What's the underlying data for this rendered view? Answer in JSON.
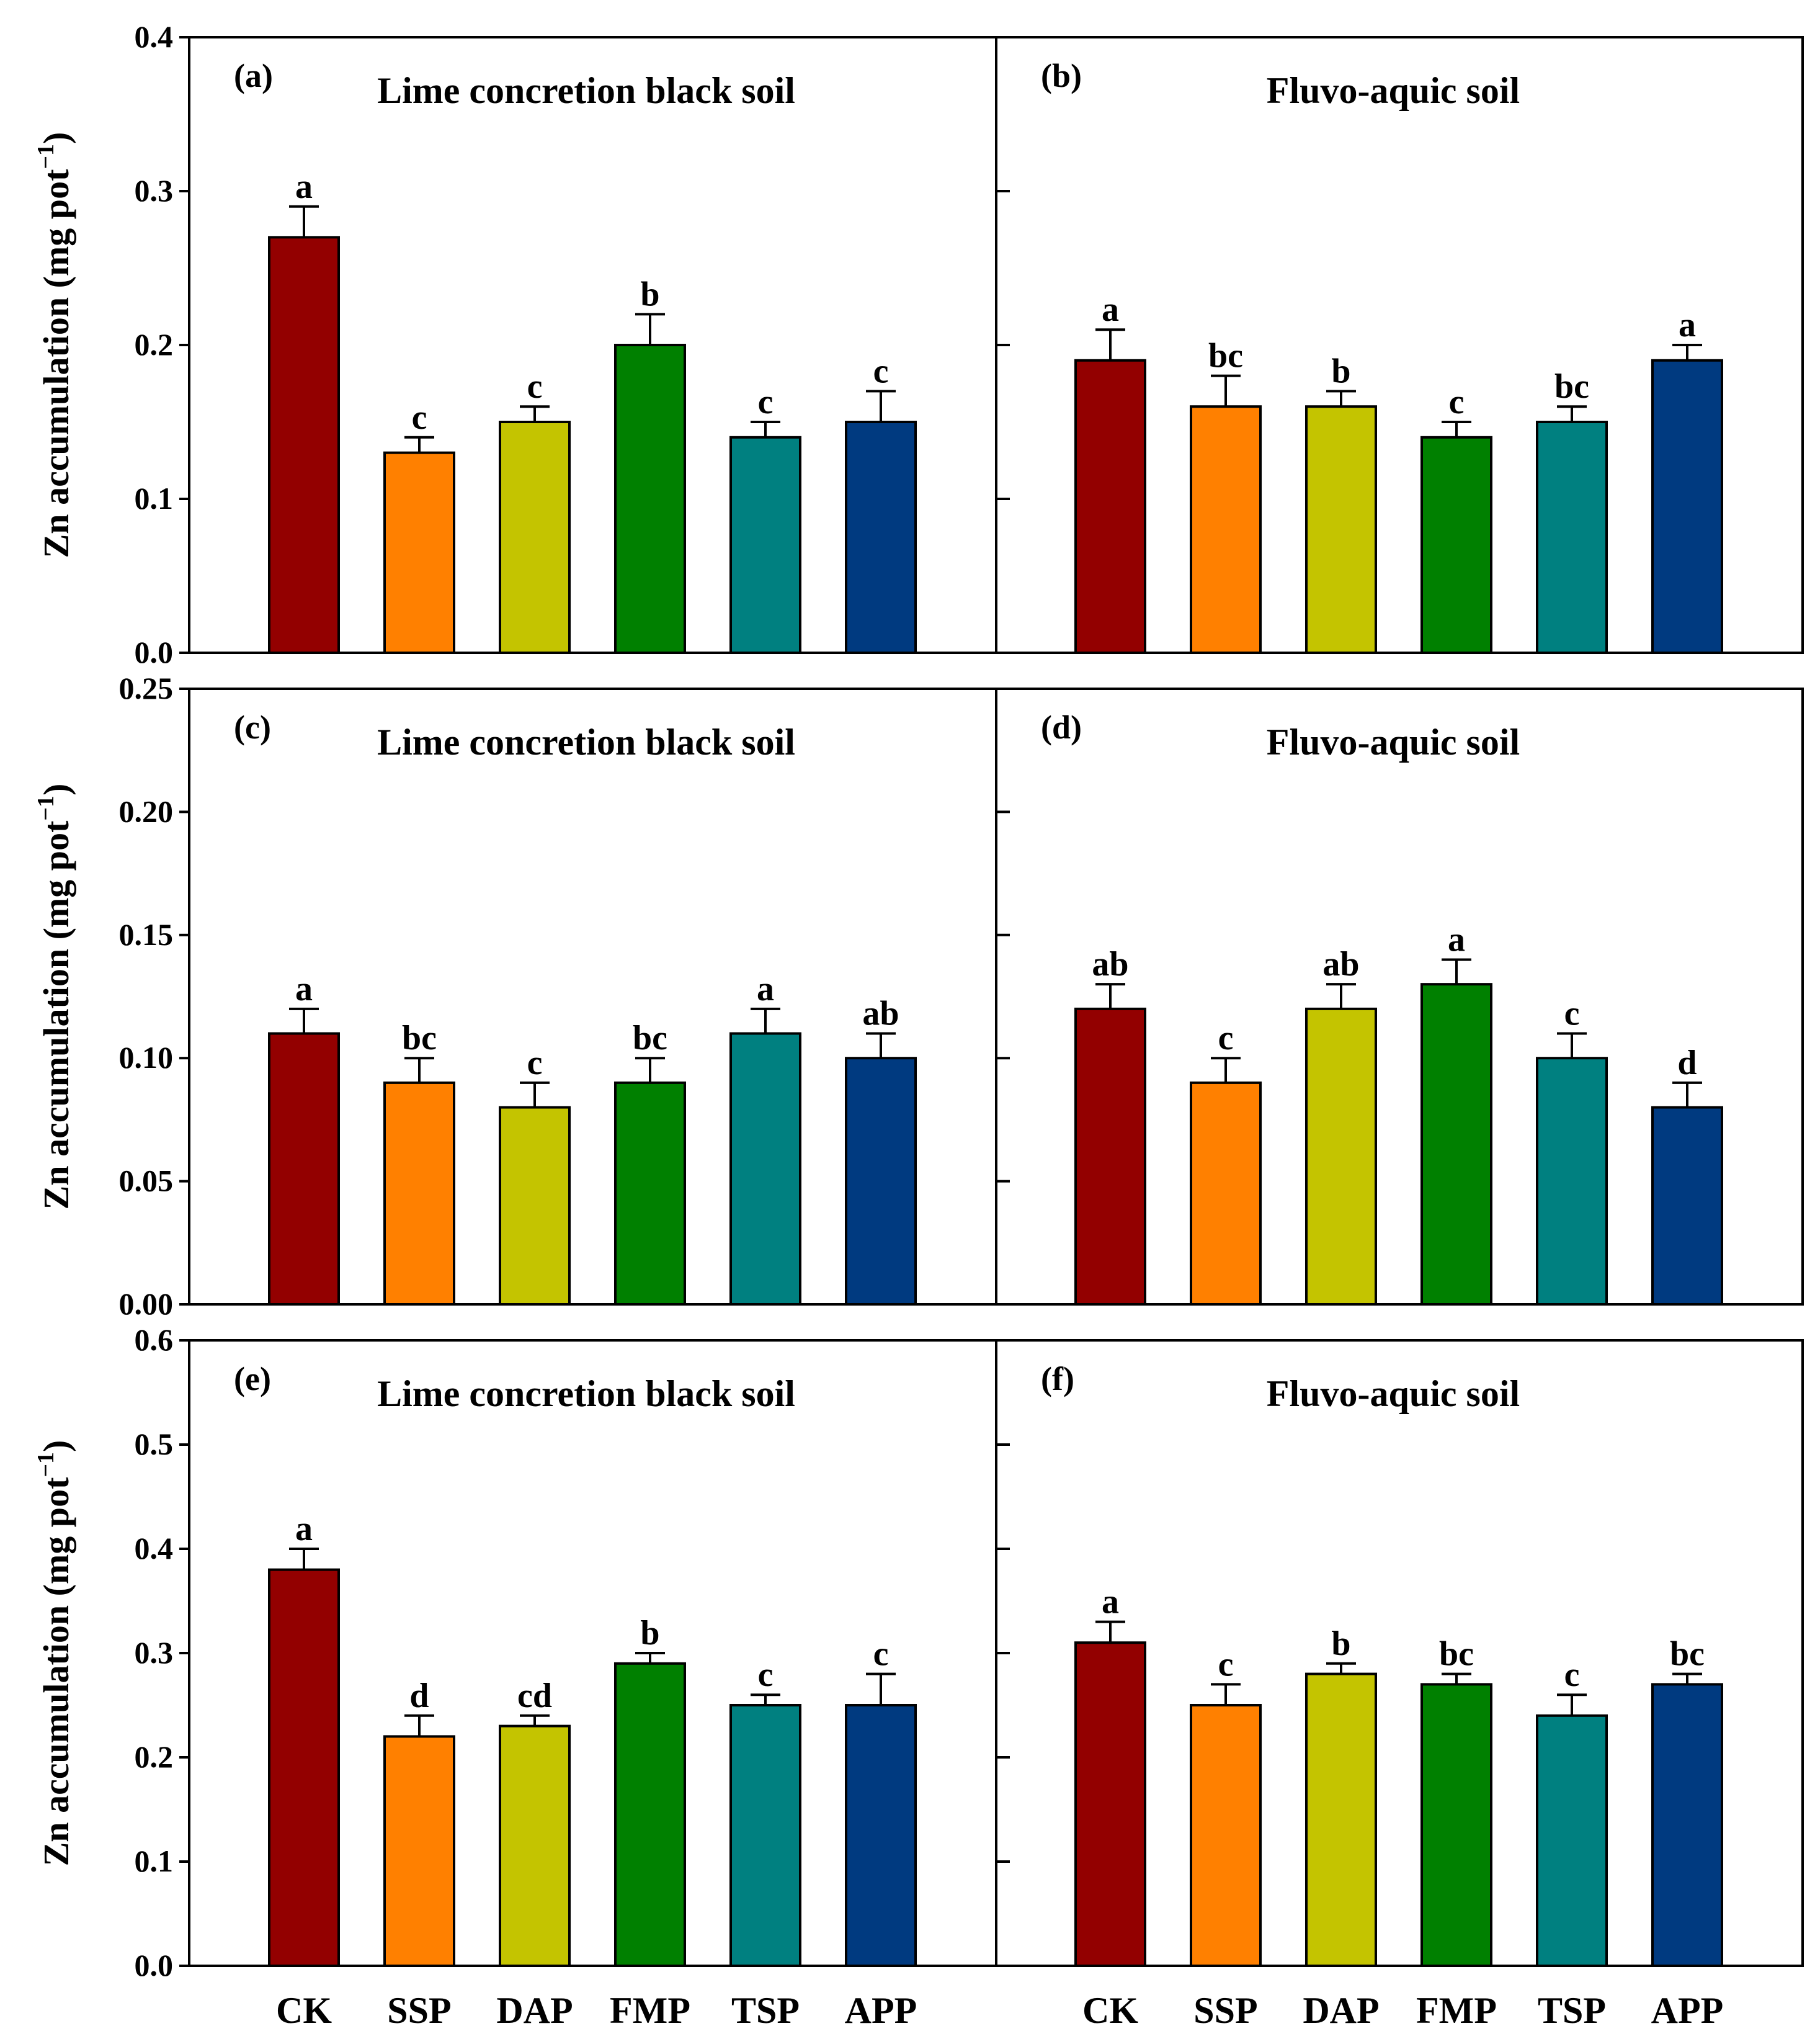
{
  "chart_data": [
    {
      "id": "a",
      "type": "bar",
      "label": "(a)",
      "title": "Lime concretion black soil",
      "categories": [
        "CK",
        "SSP",
        "DAP",
        "FMP",
        "TSP",
        "APP"
      ],
      "values": [
        0.27,
        0.13,
        0.15,
        0.2,
        0.14,
        0.15
      ],
      "errors": [
        0.02,
        0.01,
        0.01,
        0.02,
        0.01,
        0.02
      ],
      "letters": [
        "a",
        "c",
        "c",
        "b",
        "c",
        "c"
      ],
      "ylim": [
        0,
        0.4
      ],
      "yticks": [
        "0.0",
        "0.1",
        "0.2",
        "0.3",
        "0.4"
      ],
      "ylabel": "Zn accumulation (mg pot",
      "ylabel_sup": "−1",
      "ylabel_end": ")"
    },
    {
      "id": "b",
      "type": "bar",
      "label": "(b)",
      "title": "Fluvo-aquic soil",
      "categories": [
        "CK",
        "SSP",
        "DAP",
        "FMP",
        "TSP",
        "APP"
      ],
      "values": [
        0.19,
        0.16,
        0.16,
        0.14,
        0.15,
        0.19
      ],
      "errors": [
        0.02,
        0.02,
        0.01,
        0.01,
        0.01,
        0.01
      ],
      "letters": [
        "a",
        "bc",
        "b",
        "c",
        "bc",
        "a"
      ],
      "ylim": [
        0,
        0.4
      ]
    },
    {
      "id": "c",
      "type": "bar",
      "label": "(c)",
      "title": "Lime concretion black soil",
      "categories": [
        "CK",
        "SSP",
        "DAP",
        "FMP",
        "TSP",
        "APP"
      ],
      "values": [
        0.11,
        0.09,
        0.08,
        0.09,
        0.11,
        0.1
      ],
      "errors": [
        0.01,
        0.01,
        0.01,
        0.01,
        0.01,
        0.01
      ],
      "letters": [
        "a",
        "bc",
        "c",
        "bc",
        "a",
        "ab"
      ],
      "ylim": [
        0,
        0.25
      ],
      "yticks": [
        "0.00",
        "0.05",
        "0.10",
        "0.15",
        "0.20",
        "0.25"
      ],
      "ylabel": "Zn accumulation (mg pot",
      "ylabel_sup": "−1",
      "ylabel_end": ")"
    },
    {
      "id": "d",
      "type": "bar",
      "label": "(d)",
      "title": "Fluvo-aquic soil",
      "categories": [
        "CK",
        "SSP",
        "DAP",
        "FMP",
        "TSP",
        "APP"
      ],
      "values": [
        0.12,
        0.09,
        0.12,
        0.13,
        0.1,
        0.08
      ],
      "errors": [
        0.01,
        0.01,
        0.01,
        0.01,
        0.01,
        0.01
      ],
      "letters": [
        "ab",
        "c",
        "ab",
        "a",
        "c",
        "d"
      ],
      "ylim": [
        0,
        0.25
      ]
    },
    {
      "id": "e",
      "type": "bar",
      "label": "(e)",
      "title": "Lime concretion black soil",
      "categories": [
        "CK",
        "SSP",
        "DAP",
        "FMP",
        "TSP",
        "APP"
      ],
      "values": [
        0.38,
        0.22,
        0.23,
        0.29,
        0.25,
        0.25
      ],
      "errors": [
        0.02,
        0.02,
        0.01,
        0.01,
        0.01,
        0.03
      ],
      "letters": [
        "a",
        "d",
        "cd",
        "b",
        "c",
        "c"
      ],
      "ylim": [
        0,
        0.6
      ],
      "yticks": [
        "0.0",
        "0.1",
        "0.2",
        "0.3",
        "0.4",
        "0.5",
        "0.6"
      ],
      "ylabel": "Zn accumulation (mg pot",
      "ylabel_sup": "−1",
      "ylabel_end": ")"
    },
    {
      "id": "f",
      "type": "bar",
      "label": "(f)",
      "title": "Fluvo-aquic soil",
      "categories": [
        "CK",
        "SSP",
        "DAP",
        "FMP",
        "TSP",
        "APP"
      ],
      "values": [
        0.31,
        0.25,
        0.28,
        0.27,
        0.24,
        0.27
      ],
      "errors": [
        0.02,
        0.02,
        0.01,
        0.01,
        0.02,
        0.01
      ],
      "letters": [
        "a",
        "c",
        "b",
        "bc",
        "c",
        "bc"
      ],
      "ylim": [
        0,
        0.6
      ]
    }
  ],
  "colors": [
    "#930000",
    "#ff8000",
    "#c4c400",
    "#008000",
    "#008080",
    "#003a80"
  ]
}
